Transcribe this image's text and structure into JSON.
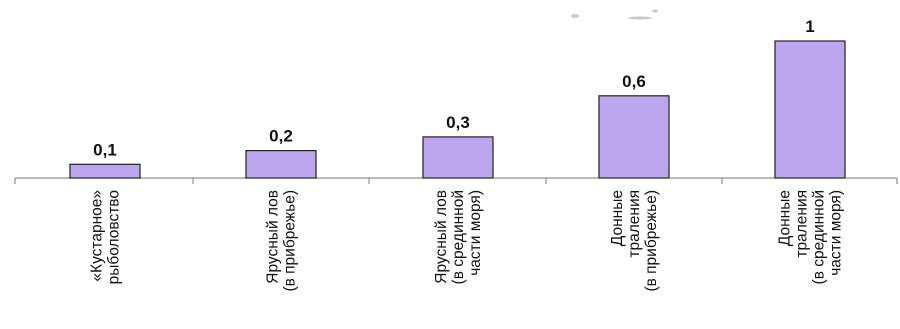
{
  "chart_data": {
    "type": "bar",
    "categories": [
      [
        "«Кустарное»",
        "рыболовство"
      ],
      [
        "Ярусный лов",
        "(в прибрежье)"
      ],
      [
        "Ярусный лов",
        "(в срединной",
        "части моря)"
      ],
      [
        "Донные",
        "траления",
        "(в прибрежье)"
      ],
      [
        "Донные",
        "траления",
        "(в срединной",
        "части моря)"
      ]
    ],
    "values": [
      0.1,
      0.2,
      0.3,
      0.6,
      1
    ],
    "value_labels": [
      "0,1",
      "0,2",
      "0,3",
      "0,6",
      "1"
    ],
    "ylim": [
      0,
      1
    ],
    "bar_color": "#bca6ee",
    "grid": false,
    "legend": "none"
  }
}
